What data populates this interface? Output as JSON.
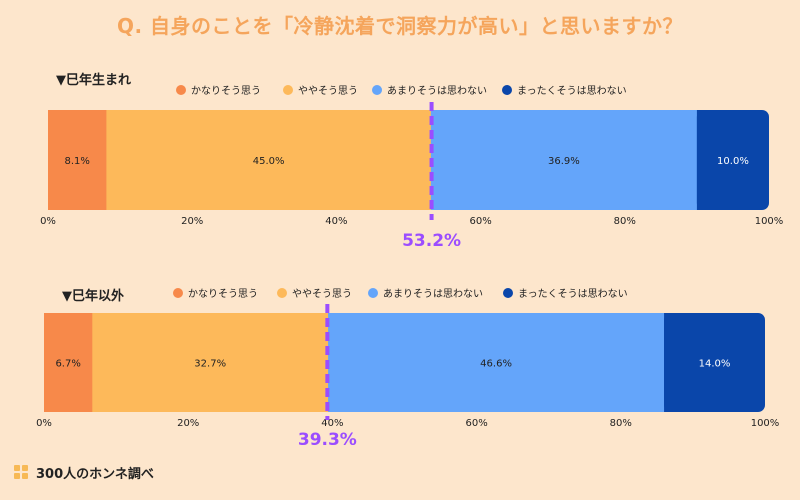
{
  "title": "Q. 自身のことを「冷静沈着で洞察力が高い」と思いますか？",
  "footer": {
    "brand": "300人のホンネ調べ"
  },
  "colors": {
    "background": "#fde6cc",
    "title": "#f5a55c",
    "series": [
      "#f7894a",
      "#fdb95a",
      "#64a5fa",
      "#0a46aa"
    ],
    "marker": "#9b4dff"
  },
  "chart_data": [
    {
      "type": "bar",
      "orientation": "horizontal-stacked",
      "title": "▼巳年生まれ",
      "series": [
        {
          "name": "かなりそう思う",
          "values": [
            8.1
          ],
          "label": "8.1%"
        },
        {
          "name": "ややそう思う",
          "values": [
            45.0
          ],
          "label": "45.0%"
        },
        {
          "name": "あまりそうは思わない",
          "values": [
            36.9
          ],
          "label": "36.9%"
        },
        {
          "name": "まったくそうは思わない",
          "values": [
            10.0
          ],
          "label": "10.0%"
        }
      ],
      "xlim": [
        0,
        100
      ],
      "ticks": [
        "0%",
        "20%",
        "40%",
        "60%",
        "80%",
        "100%"
      ],
      "marker_value": 53.2,
      "marker_label": "53.2%",
      "legend": "top"
    },
    {
      "type": "bar",
      "orientation": "horizontal-stacked",
      "title": "▼巳年以外",
      "series": [
        {
          "name": "かなりそう思う",
          "values": [
            6.7
          ],
          "label": "6.7%"
        },
        {
          "name": "ややそう思う",
          "values": [
            32.7
          ],
          "label": "32.7%"
        },
        {
          "name": "あまりそうは思わない",
          "values": [
            46.6
          ],
          "label": "46.6%"
        },
        {
          "name": "まったくそうは思わない",
          "values": [
            14.0
          ],
          "label": "14.0%"
        }
      ],
      "xlim": [
        0,
        100
      ],
      "ticks": [
        "0%",
        "20%",
        "40%",
        "60%",
        "80%",
        "100%"
      ],
      "marker_value": 39.3,
      "marker_label": "39.3%",
      "legend": "top"
    }
  ]
}
